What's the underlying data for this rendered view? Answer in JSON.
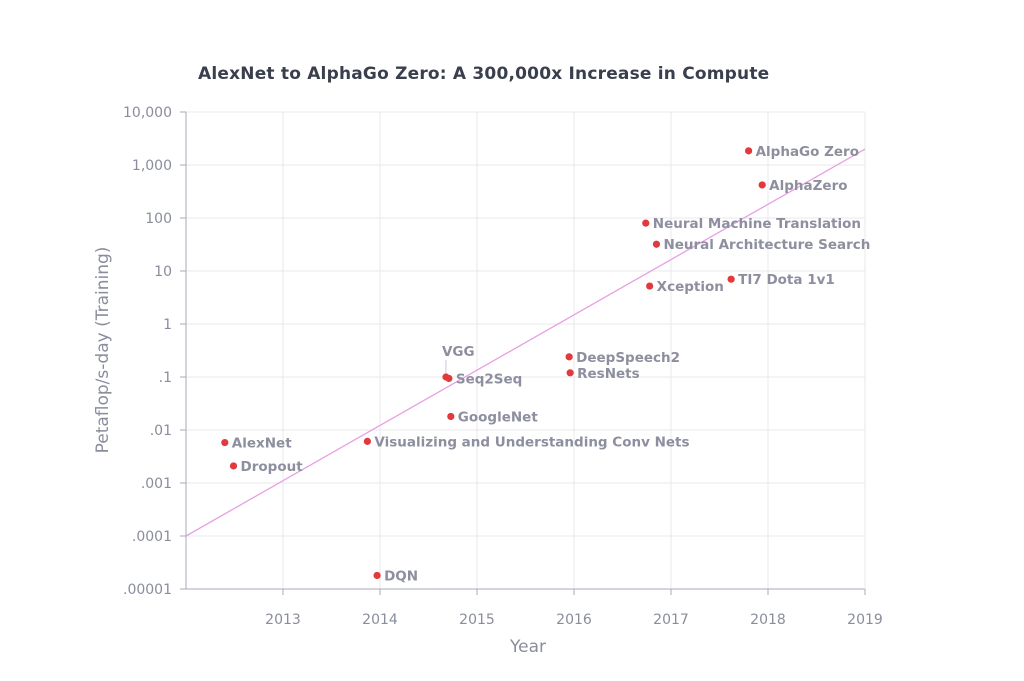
{
  "chart_data": {
    "type": "scatter",
    "title": "AlexNet to AlphaGo Zero: A 300,000x Increase in Compute",
    "xlabel": "Year",
    "ylabel": "Petaflop/s-day (Training)",
    "y_scale": "log",
    "xlim": [
      2012.0,
      2019.0
    ],
    "ylim": [
      1e-05,
      10000
    ],
    "x_ticks": [
      2013,
      2014,
      2015,
      2016,
      2017,
      2018,
      2019
    ],
    "x_tick_labels": [
      "2013",
      "2014",
      "2015",
      "2016",
      "2017",
      "2018",
      "2019"
    ],
    "y_ticks": [
      1e-05,
      0.0001,
      0.001,
      0.01,
      0.1,
      1,
      10,
      100,
      1000,
      10000
    ],
    "y_tick_labels": [
      ".00001",
      ".0001",
      ".001",
      ".01",
      ".1",
      "1",
      "10",
      "100",
      "1,000",
      "10,000"
    ],
    "grid": true,
    "points": [
      {
        "label": "AlexNet",
        "x": 2012.4,
        "y": 0.0058
      },
      {
        "label": "Dropout",
        "x": 2012.49,
        "y": 0.0021
      },
      {
        "label": "Visualizing and Understanding Conv Nets",
        "x": 2013.87,
        "y": 0.0061
      },
      {
        "label": "DQN",
        "x": 2013.97,
        "y": 1.8e-05
      },
      {
        "label": "VGG",
        "x": 2014.68,
        "y": 0.1
      },
      {
        "label": "Seq2Seq",
        "x": 2014.71,
        "y": 0.094
      },
      {
        "label": "GoogleNet",
        "x": 2014.73,
        "y": 0.018
      },
      {
        "label": "DeepSpeech2",
        "x": 2015.95,
        "y": 0.24
      },
      {
        "label": "ResNets",
        "x": 2015.96,
        "y": 0.12
      },
      {
        "label": "Neural Machine Translation",
        "x": 2016.74,
        "y": 80
      },
      {
        "label": "Neural Architecture Search",
        "x": 2016.85,
        "y": 32
      },
      {
        "label": "Xception",
        "x": 2016.78,
        "y": 5.2
      },
      {
        "label": "TI7 Dota 1v1",
        "x": 2017.62,
        "y": 7
      },
      {
        "label": "AlphaGo Zero",
        "x": 2017.8,
        "y": 1850
      },
      {
        "label": "AlphaZero",
        "x": 2017.94,
        "y": 420
      }
    ],
    "trend_line": {
      "x": [
        2012.0,
        2019.0
      ],
      "y": [
        0.0001,
        2000
      ]
    },
    "colors": {
      "points": "#e0393e",
      "trend_line": "#e7a0e4",
      "grid": "#e8e9ee",
      "axis": "#a8aab8",
      "tick_text": "#8a8d9c",
      "label_text": "#8d8f9f",
      "title_text": "#3a3f4d"
    }
  }
}
